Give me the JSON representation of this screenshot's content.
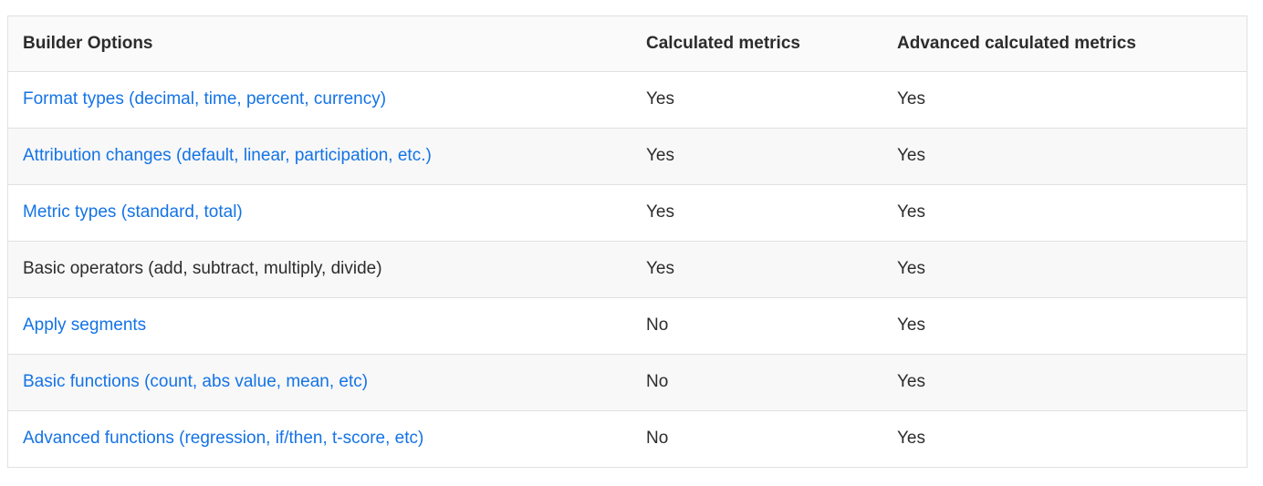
{
  "table": {
    "columns": [
      {
        "label": "Builder Options"
      },
      {
        "label": "Calculated metrics"
      },
      {
        "label": "Advanced calculated metrics"
      }
    ],
    "rows": [
      {
        "option": "Format types (decimal, time, percent, currency)",
        "is_link": true,
        "calculated": "Yes",
        "advanced": "Yes"
      },
      {
        "option": "Attribution changes (default, linear, participation, etc.)",
        "is_link": true,
        "calculated": "Yes",
        "advanced": "Yes"
      },
      {
        "option": "Metric types (standard, total)",
        "is_link": true,
        "calculated": "Yes",
        "advanced": "Yes"
      },
      {
        "option": "Basic operators (add, subtract, multiply, divide)",
        "is_link": false,
        "calculated": "Yes",
        "advanced": "Yes"
      },
      {
        "option": "Apply segments",
        "is_link": true,
        "calculated": "No",
        "advanced": "Yes"
      },
      {
        "option": "Basic functions (count, abs value, mean, etc)",
        "is_link": true,
        "calculated": "No",
        "advanced": "Yes"
      },
      {
        "option": "Advanced functions (regression, if/then, t-score, etc)",
        "is_link": true,
        "calculated": "No",
        "advanced": "Yes"
      }
    ],
    "colors": {
      "link": "#1473e6",
      "text": "#2c2c2c",
      "border": "#e1e1e1",
      "stripe_bg": "#f8f8f8",
      "header_bg": "#fafafa"
    }
  }
}
